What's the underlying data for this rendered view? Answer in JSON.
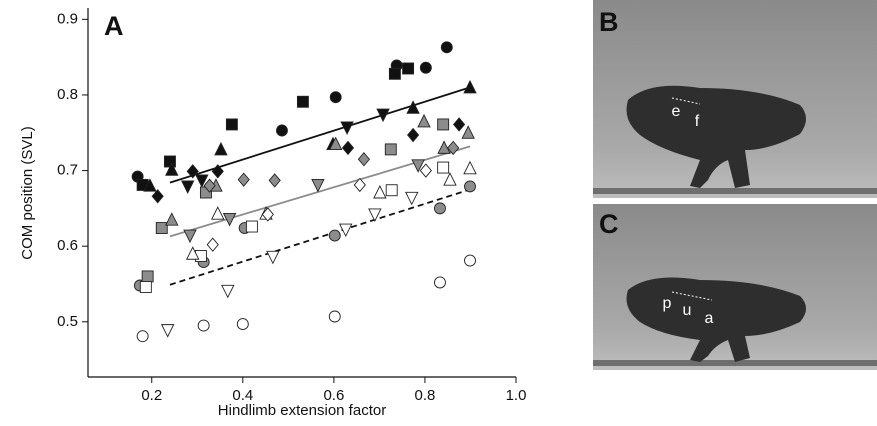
{
  "chart_data": {
    "type": "scatter",
    "panel_label": "A",
    "x_label": "Hindlimb extension factor",
    "y_label": "COM position (SVL)",
    "xlim": [
      0.06,
      1.0
    ],
    "ylim": [
      0.427,
      0.915
    ],
    "xticks": [
      0.2,
      0.4,
      0.6,
      0.8,
      {
        "value": 1.0,
        "label": "1.0"
      }
    ],
    "yticks": [
      0.5,
      0.6,
      0.7,
      0.8,
      0.9
    ],
    "series": [
      {
        "marker": "circle",
        "color": "#111111",
        "x": [
          0.169,
          0.486,
          0.604,
          0.738,
          0.802,
          0.848
        ],
        "values": [
          0.692,
          0.753,
          0.797,
          0.839,
          0.836,
          0.863
        ]
      },
      {
        "marker": "square",
        "color": "#111111",
        "x": [
          0.18,
          0.24,
          0.376,
          0.532,
          0.734,
          0.763
        ],
        "values": [
          0.681,
          0.712,
          0.761,
          0.791,
          0.828,
          0.835
        ]
      },
      {
        "marker": "triangle",
        "color": "#111111",
        "x": [
          0.196,
          0.244,
          0.352,
          0.598,
          0.774,
          0.899
        ],
        "values": [
          0.68,
          0.701,
          0.728,
          0.735,
          0.783,
          0.81
        ]
      },
      {
        "marker": "triangle-down",
        "color": "#111111",
        "x": [
          0.279,
          0.31,
          0.629,
          0.708
        ],
        "values": [
          0.679,
          0.687,
          0.757,
          0.774
        ]
      },
      {
        "marker": "diamond",
        "color": "#111111",
        "x": [
          0.213,
          0.29,
          0.345,
          0.631,
          0.774,
          0.875
        ],
        "values": [
          0.666,
          0.699,
          0.699,
          0.73,
          0.747,
          0.761
        ]
      },
      {
        "marker": "circle",
        "color": "#8c8c8c",
        "x": [
          0.174,
          0.314,
          0.404,
          0.602,
          0.833,
          0.899
        ],
        "values": [
          0.548,
          0.579,
          0.624,
          0.614,
          0.65,
          0.679
        ]
      },
      {
        "marker": "square",
        "color": "#8c8c8c",
        "x": [
          0.191,
          0.222,
          0.319,
          0.725,
          0.84
        ],
        "values": [
          0.56,
          0.624,
          0.671,
          0.728,
          0.761
        ]
      },
      {
        "marker": "triangle",
        "color": "#8c8c8c",
        "x": [
          0.244,
          0.341,
          0.604,
          0.798,
          0.842,
          0.895
        ],
        "values": [
          0.635,
          0.68,
          0.735,
          0.765,
          0.73,
          0.75
        ]
      },
      {
        "marker": "triangle-down",
        "color": "#8c8c8c",
        "x": [
          0.284,
          0.371,
          0.565,
          0.785
        ],
        "values": [
          0.614,
          0.636,
          0.681,
          0.707
        ]
      },
      {
        "marker": "diamond",
        "color": "#8c8c8c",
        "x": [
          0.327,
          0.402,
          0.47,
          0.666,
          0.862
        ],
        "values": [
          0.68,
          0.688,
          0.687,
          0.715,
          0.73
        ]
      },
      {
        "marker": "circle",
        "color": "#ffffff",
        "x": [
          0.18,
          0.314,
          0.4,
          0.602,
          0.833,
          0.899
        ],
        "values": [
          0.481,
          0.495,
          0.497,
          0.507,
          0.552,
          0.581
        ]
      },
      {
        "marker": "square",
        "color": "#ffffff",
        "x": [
          0.187,
          0.308,
          0.42,
          0.727,
          0.84
        ],
        "values": [
          0.546,
          0.587,
          0.626,
          0.674,
          0.704
        ]
      },
      {
        "marker": "triangle",
        "color": "#ffffff",
        "x": [
          0.29,
          0.345,
          0.451,
          0.701,
          0.855,
          0.899
        ],
        "values": [
          0.59,
          0.643,
          0.643,
          0.671,
          0.688,
          0.703
        ]
      },
      {
        "marker": "triangle-down",
        "color": "#ffffff",
        "x": [
          0.235,
          0.367,
          0.466,
          0.626,
          0.69,
          0.771
        ],
        "values": [
          0.489,
          0.541,
          0.586,
          0.622,
          0.642,
          0.664
        ]
      },
      {
        "marker": "diamond",
        "color": "#ffffff",
        "x": [
          0.334,
          0.455,
          0.657,
          0.802
        ],
        "values": [
          0.602,
          0.642,
          0.681,
          0.7
        ]
      }
    ],
    "fits": [
      {
        "style": "solid",
        "color": "#111111",
        "x": [
          0.24,
          0.899
        ],
        "values": [
          0.684,
          0.81
        ]
      },
      {
        "style": "solid",
        "color": "#8c8c8c",
        "x": [
          0.24,
          0.899
        ],
        "values": [
          0.613,
          0.732
        ]
      },
      {
        "style": "dashed",
        "color": "#111111",
        "x": [
          0.24,
          0.899
        ],
        "values": [
          0.549,
          0.675
        ]
      }
    ]
  },
  "photos": [
    {
      "label": "B",
      "annotations": [
        "e",
        "f"
      ]
    },
    {
      "label": "C",
      "annotations": [
        "p",
        "u",
        "a"
      ]
    }
  ]
}
